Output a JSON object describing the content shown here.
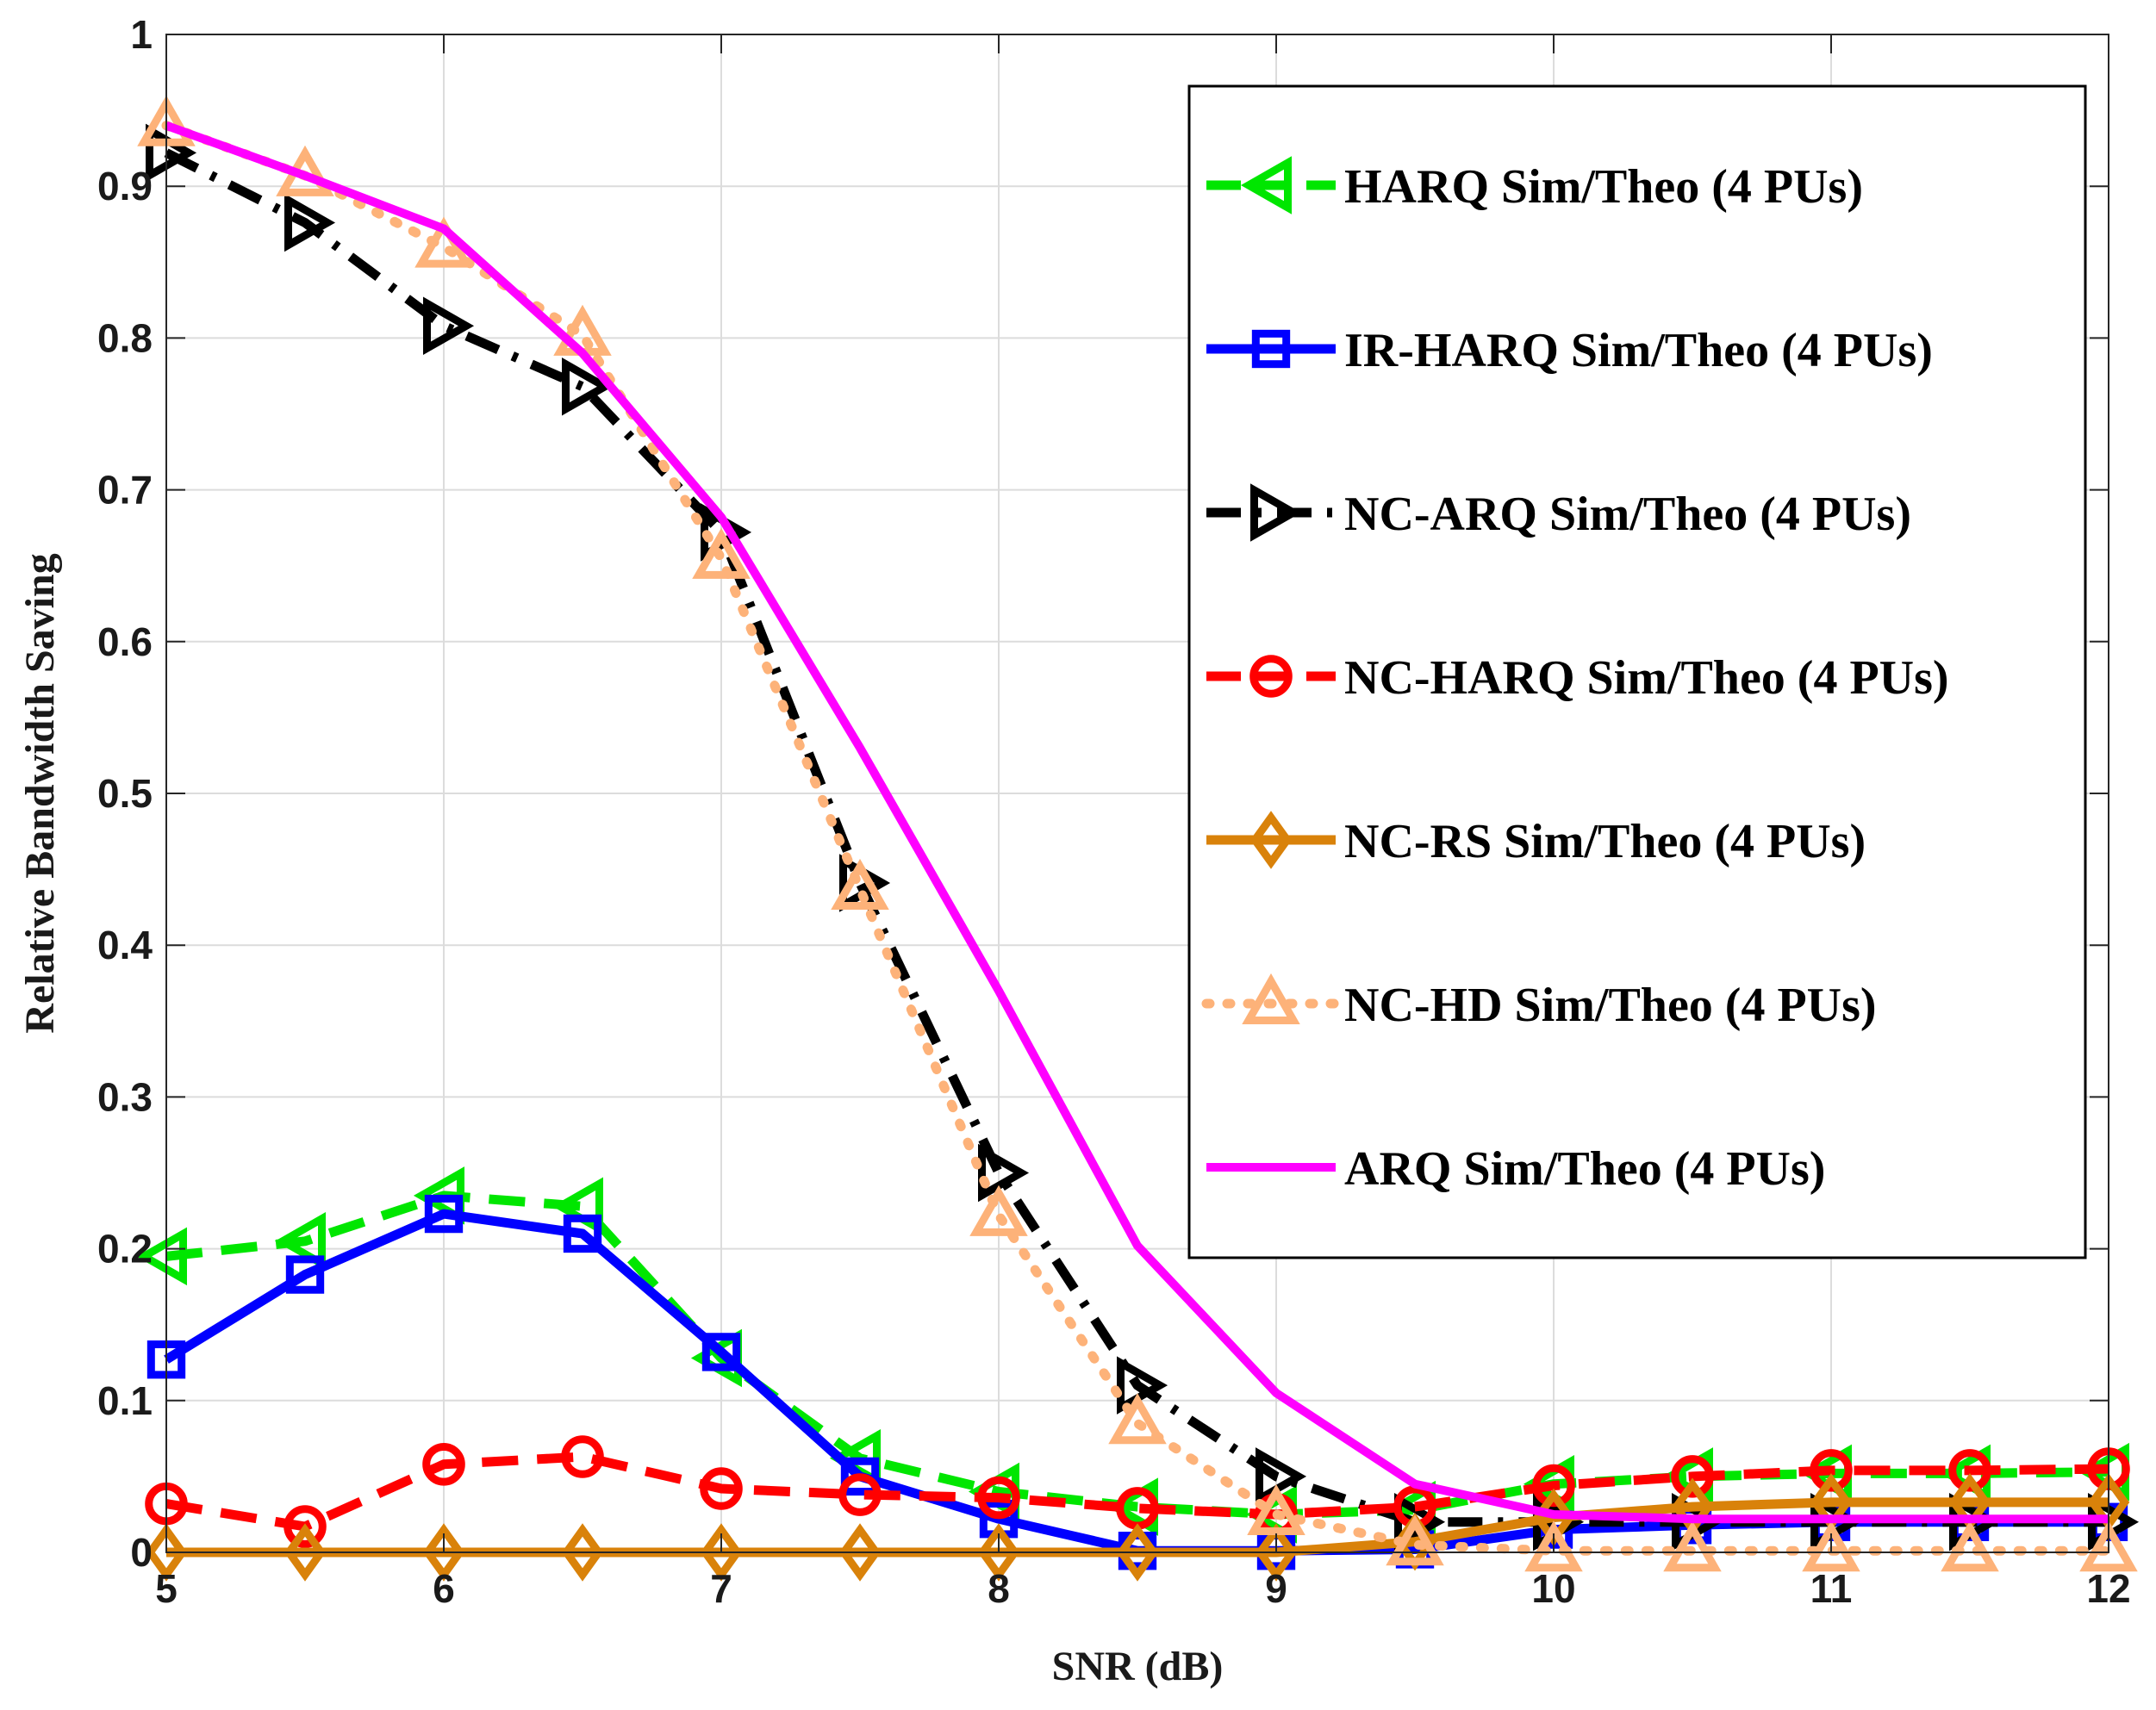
{
  "chart_data": {
    "type": "line",
    "title": "",
    "xlabel": "SNR (dB)",
    "ylabel": "Relative Bandwidth Saving",
    "xlim": [
      5,
      12
    ],
    "ylim": [
      0,
      1
    ],
    "xticks": [
      "5",
      "6",
      "7",
      "8",
      "9",
      "10",
      "11",
      "12"
    ],
    "yticks": [
      "0",
      "0.1",
      "0.2",
      "0.3",
      "0.4",
      "0.5",
      "0.6",
      "0.7",
      "0.8",
      "0.9",
      "1"
    ],
    "grid": true,
    "legend_position": "top-right",
    "x": [
      5,
      5.5,
      6,
      6.5,
      7,
      7.5,
      8,
      8.5,
      9,
      9.5,
      10,
      10.5,
      11,
      11.5,
      12
    ],
    "series": [
      {
        "name": "HARQ Sim/Theo (4 PUs)",
        "color": "#00e600",
        "dash": "dashed",
        "marker": "triangle-left",
        "values": [
          0.195,
          0.205,
          0.235,
          0.228,
          0.128,
          0.062,
          0.04,
          0.03,
          0.025,
          0.028,
          0.045,
          0.05,
          0.052,
          0.052,
          0.053
        ]
      },
      {
        "name": "IR-HARQ Sim/Theo (4 PUs)",
        "color": "#0000ff",
        "dash": "solid",
        "marker": "square",
        "values": [
          0.127,
          0.183,
          0.223,
          0.21,
          0.132,
          0.05,
          0.022,
          0.001,
          0.001,
          0.002,
          0.015,
          0.018,
          0.02,
          0.02,
          0.02
        ]
      },
      {
        "name": "NC-ARQ Sim/Theo (4 PUs)",
        "color": "#000000",
        "dash": "dashdot",
        "marker": "triangle-right",
        "values": [
          0.922,
          0.876,
          0.808,
          0.768,
          0.672,
          0.441,
          0.25,
          0.11,
          0.05,
          0.02,
          0.02,
          0.02,
          0.02,
          0.02,
          0.02
        ]
      },
      {
        "name": "NC-HARQ Sim/Theo (4 PUs)",
        "color": "#ff0000",
        "dash": "dashed",
        "marker": "circle",
        "values": [
          0.032,
          0.017,
          0.058,
          0.063,
          0.042,
          0.038,
          0.036,
          0.029,
          0.025,
          0.03,
          0.044,
          0.05,
          0.054,
          0.054,
          0.055
        ]
      },
      {
        "name": "NC-RS Sim/Theo (4 PUs)",
        "color": "#d9820a",
        "dash": "solid",
        "marker": "diamond",
        "values": [
          0.0,
          0.0,
          0.0,
          0.0,
          0.0,
          0.0,
          0.0,
          0.0,
          0.0,
          0.007,
          0.023,
          0.03,
          0.033,
          0.033,
          0.033
        ]
      },
      {
        "name": "NC-HD Sim/Theo (4 PUs)",
        "color": "#fdb279",
        "dash": "dotted",
        "marker": "triangle-up",
        "values": [
          0.94,
          0.907,
          0.86,
          0.802,
          0.655,
          0.437,
          0.222,
          0.085,
          0.025,
          0.005,
          0.001,
          0.001,
          0.001,
          0.001,
          0.001
        ]
      },
      {
        "name": "ARQ Sim/Theo (4 PUs)",
        "color": "#ff00ff",
        "dash": "solid",
        "marker": "none",
        "values": [
          0.94,
          0.907,
          0.872,
          0.79,
          0.682,
          0.53,
          0.37,
          0.202,
          0.105,
          0.045,
          0.025,
          0.022,
          0.022,
          0.022,
          0.022
        ]
      }
    ]
  }
}
